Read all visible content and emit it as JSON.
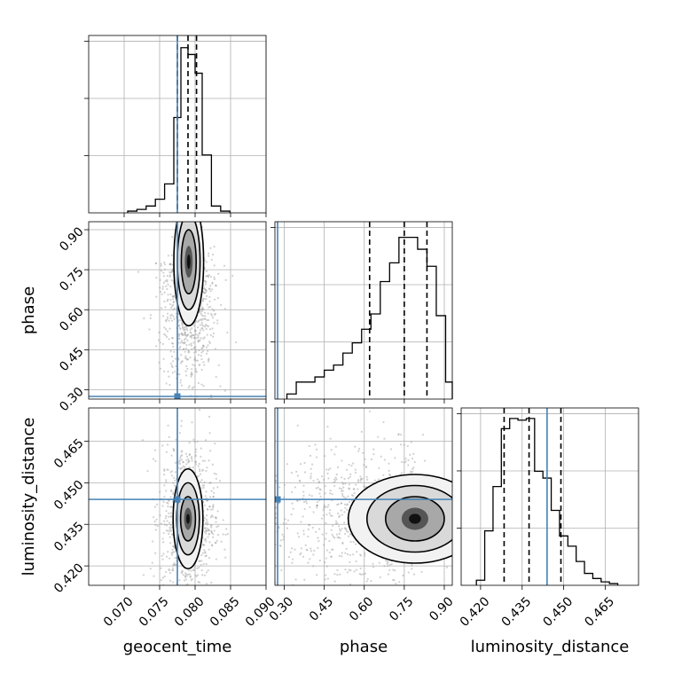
{
  "chart_data": {
    "type": "corner",
    "parameters": [
      "geocent_time",
      "phase",
      "luminosity_distance"
    ],
    "truth_color": "#4682b4",
    "truths": {
      "geocent_time": 0.0775,
      "phase": 0.275,
      "luminosity_distance": 0.444
    },
    "quantiles": {
      "geocent_time": [
        0.0775,
        0.079,
        0.0802
      ],
      "phase": [
        0.62,
        0.75,
        0.835
      ],
      "luminosity_distance": [
        0.4285,
        0.4375,
        0.449
      ]
    },
    "ranges": {
      "geocent_time": [
        0.065,
        0.09
      ],
      "phase": [
        0.265,
        0.93
      ],
      "luminosity_distance": [
        0.413,
        0.477
      ]
    },
    "ticks": {
      "geocent_time": [
        0.07,
        0.075,
        0.08,
        0.085,
        0.09
      ],
      "phase": [
        0.3,
        0.45,
        0.6,
        0.75,
        0.9
      ],
      "luminosity_distance": [
        0.42,
        0.435,
        0.45,
        0.465
      ]
    },
    "tick_labels": {
      "geocent_time": [
        "0.070",
        "0.075",
        "0.080",
        "0.085",
        "0.090"
      ],
      "phase": [
        "0.30",
        "0.45",
        "0.60",
        "0.75",
        "0.90"
      ],
      "luminosity_distance": [
        "0.420",
        "0.435",
        "0.450",
        "0.465"
      ]
    },
    "histograms": {
      "geocent_time": {
        "edges": [
          0.0705,
          0.0718,
          0.0731,
          0.0744,
          0.0757,
          0.077,
          0.078,
          0.079,
          0.08,
          0.081,
          0.0823,
          0.0836,
          0.0849
        ],
        "counts": [
          0.01,
          0.02,
          0.04,
          0.08,
          0.17,
          0.56,
          0.97,
          0.93,
          0.82,
          0.34,
          0.04,
          0.01
        ]
      },
      "phase": {
        "edges": [
          0.31,
          0.345,
          0.38,
          0.415,
          0.45,
          0.485,
          0.52,
          0.555,
          0.59,
          0.625,
          0.66,
          0.695,
          0.73,
          0.765,
          0.8,
          0.835,
          0.87,
          0.905,
          0.93
        ],
        "counts": [
          0.03,
          0.1,
          0.1,
          0.13,
          0.17,
          0.2,
          0.27,
          0.33,
          0.41,
          0.5,
          0.69,
          0.8,
          0.95,
          0.95,
          0.88,
          0.78,
          0.49,
          0.1
        ]
      },
      "luminosity_distance": {
        "edges": [
          0.4185,
          0.4215,
          0.4245,
          0.4275,
          0.4305,
          0.4335,
          0.4365,
          0.4395,
          0.4425,
          0.4455,
          0.4485,
          0.4515,
          0.4545,
          0.4575,
          0.4605,
          0.4635,
          0.4665,
          0.4695
        ],
        "counts": [
          0.03,
          0.32,
          0.58,
          0.92,
          0.98,
          0.97,
          0.98,
          0.67,
          0.63,
          0.44,
          0.29,
          0.23,
          0.14,
          0.07,
          0.04,
          0.02,
          0.01
        ]
      }
    },
    "hist2d": [
      {
        "x": "geocent_time",
        "y": "phase",
        "center": [
          0.0791,
          0.78
        ],
        "sigma": [
          0.00105,
          0.09
        ],
        "contours": [
          [
            0.00055,
            0.06
          ],
          [
            0.00105,
            0.12
          ],
          [
            0.0016,
            0.18
          ],
          [
            0.0021,
            0.24
          ]
        ]
      },
      {
        "x": "geocent_time",
        "y": "luminosity_distance",
        "center": [
          0.079,
          0.437
        ],
        "sigma": [
          0.00105,
          0.0075
        ],
        "contours": [
          [
            0.00055,
            0.004
          ],
          [
            0.00105,
            0.008
          ],
          [
            0.0016,
            0.013
          ],
          [
            0.0021,
            0.018
          ]
        ]
      },
      {
        "x": "phase",
        "y": "luminosity_distance",
        "center": [
          0.79,
          0.437
        ],
        "sigma": [
          0.11,
          0.0075
        ],
        "contours": [
          [
            0.05,
            0.004
          ],
          [
            0.11,
            0.008
          ],
          [
            0.18,
            0.012
          ],
          [
            0.25,
            0.016
          ]
        ]
      }
    ]
  }
}
